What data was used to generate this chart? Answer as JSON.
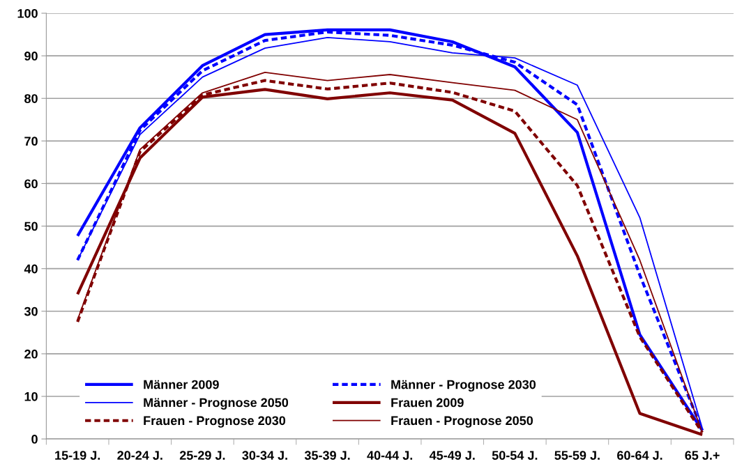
{
  "chart_data": {
    "type": "line",
    "categories": [
      "15-19 J.",
      "20-24 J.",
      "25-29 J.",
      "30-34 J.",
      "35-39 J.",
      "40-44 J.",
      "45-49 J.",
      "50-54 J.",
      "55-59 J.",
      "60-64 J.",
      "65 J.+"
    ],
    "ylim": [
      0,
      100
    ],
    "yticks": [
      0,
      10,
      20,
      30,
      40,
      50,
      60,
      70,
      80,
      90,
      100
    ],
    "grid": "y",
    "legend": "bottom left",
    "series": [
      {
        "name": "Männer 2009",
        "color": "#0000ff",
        "line_style": "solid",
        "values": [
          47.7,
          73.1,
          87.7,
          95.0,
          96.1,
          96.1,
          93.3,
          87.4,
          72.0,
          24.5,
          2.0
        ]
      },
      {
        "name": "Männer - Prognose 2030",
        "color": "#0000ff",
        "line_style": "dashed",
        "values": [
          42.0,
          72.5,
          86.5,
          93.6,
          95.6,
          94.8,
          92.5,
          88.5,
          78.5,
          38.5,
          2.0
        ]
      },
      {
        "name": "Männer - Prognose 2050",
        "color": "#0000ff",
        "line_style": "solid",
        "values": [
          42.0,
          71.5,
          85.0,
          91.8,
          94.3,
          93.3,
          90.7,
          89.5,
          83.1,
          52.0,
          2.5
        ]
      },
      {
        "name": "Frauen 2009",
        "color": "#800000",
        "line_style": "solid",
        "values": [
          34.0,
          66.0,
          80.3,
          82.1,
          79.9,
          81.3,
          79.6,
          71.8,
          43.0,
          6.0,
          1.0
        ]
      },
      {
        "name": "Frauen - Prognose 2030",
        "color": "#800000",
        "line_style": "dashed",
        "values": [
          27.5,
          67.5,
          80.8,
          84.2,
          82.2,
          83.6,
          81.4,
          77.0,
          59.5,
          24.0,
          1.5
        ]
      },
      {
        "name": "Frauen - Prognose 2050",
        "color": "#800000",
        "line_style": "solid",
        "values": [
          28.0,
          68.0,
          81.3,
          86.1,
          84.2,
          85.6,
          83.7,
          81.9,
          75.0,
          42.0,
          1.5
        ]
      }
    ]
  }
}
